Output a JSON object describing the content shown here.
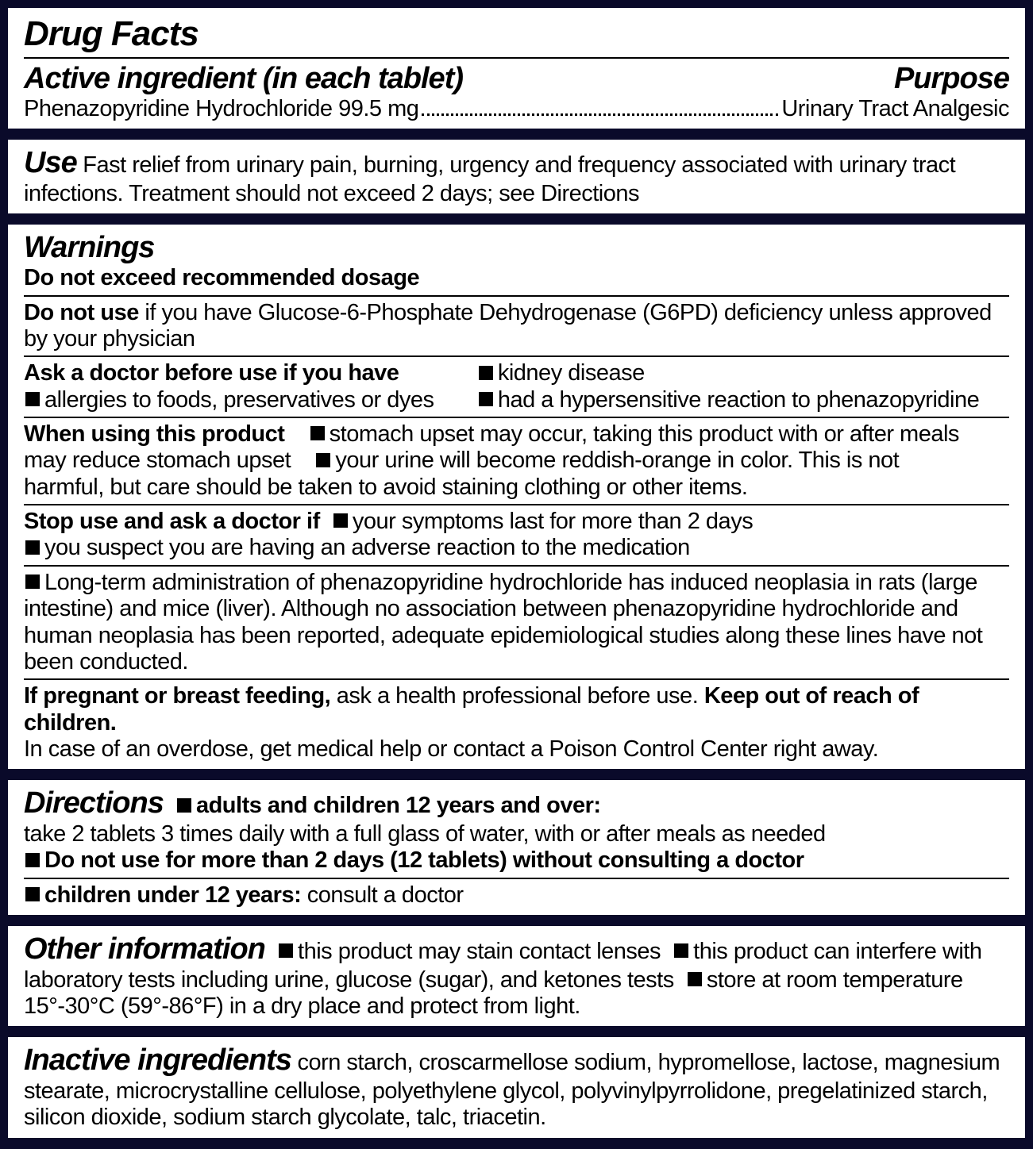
{
  "colors": {
    "frame": "#0a0a2a",
    "bg": "#ffffff",
    "text": "#000000",
    "rule": "#000000"
  },
  "title": "Drug Facts",
  "active": {
    "heading": "Active ingredient (in each tablet)",
    "purpose_heading": "Purpose",
    "ingredient": "Phenazopyridine Hydrochloride 99.5 mg",
    "purpose": "Urinary Tract Analgesic"
  },
  "use": {
    "heading": "Use",
    "text": "Fast relief from urinary pain, burning, urgency and frequency associated with urinary tract infections. Treatment should not exceed 2 days; see Directions"
  },
  "warnings": {
    "heading": "Warnings",
    "recommend": "Do not exceed recommended dosage",
    "do_not_use": {
      "label": "Do not use",
      "text": " if you have Glucose-6-Phosphate Dehydrogenase (G6PD) deficiency unless approved by your physician"
    },
    "ask_doctor": {
      "label": "Ask a doctor before use if you have",
      "left": "allergies to foods, preservatives or dyes",
      "right1": "kidney disease",
      "right2": "had a hypersensitive reaction to phenazopyridine"
    },
    "when_using": {
      "label": "When using this product",
      "b1a": "stomach upset may occur, taking this product with or after meals",
      "b1b": "may reduce stomach upset",
      "b2a": "your urine will become reddish-orange in color. This is not",
      "b2b": "harmful, but care should be taken to avoid staining clothing or other items."
    },
    "stop_use": {
      "label": "Stop use and ask a doctor if",
      "b1": "your symptoms last for more than 2 days",
      "b2": "you suspect you are having an adverse reaction to the medication"
    },
    "longterm": "Long-term administration of phenazopyridine hydrochloride has induced neoplasia in rats (large intestine) and mice (liver). Although no association between phenazopyridine hydrochloride and human neoplasia has been reported, adequate epidemiological studies along these lines have not been conducted.",
    "pregnant": {
      "label": "If pregnant or breast feeding,",
      "text1": " ask a health professional before use. ",
      "label2": "Keep out of reach of children.",
      "text2": "In case of an overdose, get medical help or contact a Poison Control Center right away."
    }
  },
  "directions": {
    "heading": "Directions",
    "adults_label": "adults and children 12 years and over:",
    "adults_text": "take 2 tablets 3 times daily with a full glass of water, with or after meals as needed",
    "limit": "Do not use for more than 2 days (12 tablets) without consulting a doctor",
    "children_label": "children under 12 years:",
    "children_text": " consult a doctor"
  },
  "other": {
    "heading": "Other information",
    "b1": "this product may stain contact lenses",
    "b2": "this product can interfere with laboratory tests including urine, glucose (sugar), and ketones tests",
    "b3": "store at room temperature 15°-30°C (59°-86°F) in a dry place and protect from light."
  },
  "inactive": {
    "heading": "Inactive ingredients",
    "text": " corn starch, croscarmellose sodium, hypromellose, lactose, magnesium stearate, microcrystalline cellulose, polyethylene glycol, polyvinylpyrrolidone, pregelatinized starch, silicon dioxide, sodium starch glycolate, talc, triacetin."
  }
}
